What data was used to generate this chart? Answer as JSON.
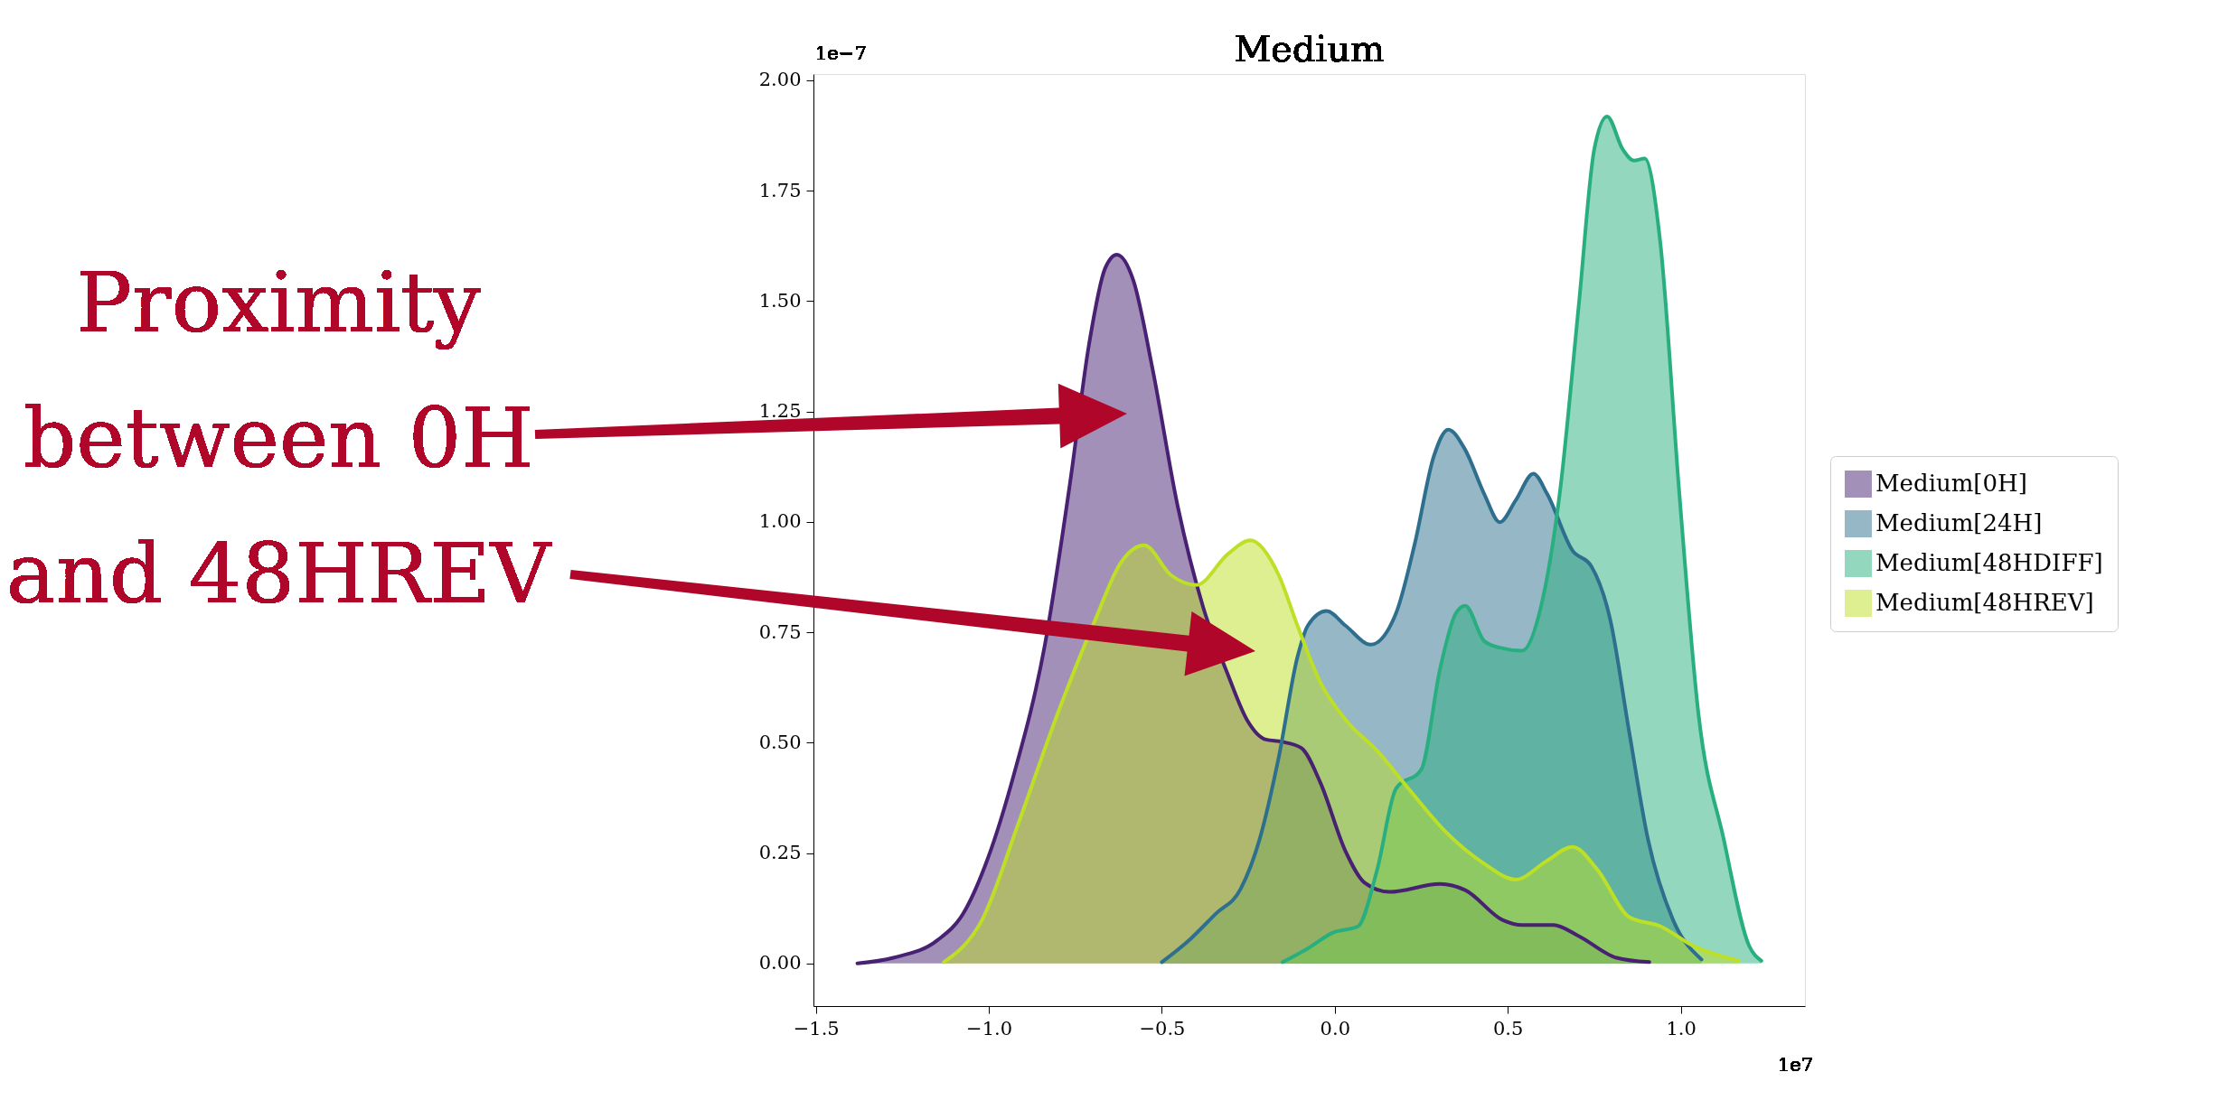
{
  "chart_data": {
    "type": "area",
    "title": "Medium",
    "legend": "right",
    "grid": false,
    "xlim": [
      -1.507,
      1.359
    ],
    "ylim": [
      -0.0965,
      2.014
    ],
    "xticks": [
      {
        "value": -1.5,
        "label": "−1.5"
      },
      {
        "value": -1.0,
        "label": "−1.0"
      },
      {
        "value": -0.5,
        "label": "−0.5"
      },
      {
        "value": 0,
        "label": "0.0"
      },
      {
        "value": 0.5,
        "label": "0.5"
      },
      {
        "value": 1.0,
        "label": "1.0"
      }
    ],
    "yticks": [
      {
        "value": 0,
        "label": "0.00"
      },
      {
        "value": 0.25,
        "label": "0.25"
      },
      {
        "value": 0.5,
        "label": "0.50"
      },
      {
        "value": 0.75,
        "label": "0.75"
      },
      {
        "value": 1.0,
        "label": "1.00"
      },
      {
        "value": 1.25,
        "label": "1.25"
      },
      {
        "value": 1.5,
        "label": "1.50"
      },
      {
        "value": 1.75,
        "label": "1.75"
      },
      {
        "value": 2.0,
        "label": "2.00"
      }
    ],
    "annotations": [
      "1e−7",
      "1e7",
      "Proximity\nbetween 0H\nand 48HREV"
    ],
    "series": [
      {
        "name": "Medium[0H]",
        "color": "#482173",
        "x": [
          -1.38,
          -1.276,
          -1.148,
          -1.075,
          -1.002,
          -0.929,
          -0.838,
          -0.765,
          -0.71,
          -0.664,
          -0.63,
          -0.582,
          -0.527,
          -0.454,
          -0.381,
          -0.308,
          -0.254,
          -0.199,
          -0.153,
          -0.097,
          -0.042,
          0.031,
          0.086,
          0.158,
          0.304,
          0.377,
          0.486,
          0.541,
          0.632,
          0.705,
          0.814,
          0.909
        ],
        "values": [
          0,
          0.013,
          0.053,
          0.112,
          0.24,
          0.424,
          0.722,
          1.09,
          1.404,
          1.574,
          1.605,
          1.546,
          1.347,
          1.035,
          0.808,
          0.652,
          0.552,
          0.507,
          0.502,
          0.488,
          0.41,
          0.254,
          0.183,
          0.162,
          0.18,
          0.166,
          0.098,
          0.087,
          0.087,
          0.062,
          0.013,
          0.003
        ]
      },
      {
        "name": "Medium[24H]",
        "color": "#2e6f8e",
        "x": [
          -0.5,
          -0.418,
          -0.345,
          -0.272,
          -0.217,
          -0.162,
          -0.108,
          -0.078,
          -0.024,
          0.031,
          0.104,
          0.177,
          0.231,
          0.286,
          0.328,
          0.377,
          0.432,
          0.477,
          0.523,
          0.574,
          0.614,
          0.687,
          0.741,
          0.796,
          0.851,
          0.905,
          0.978,
          1.06
        ],
        "values": [
          0.003,
          0.055,
          0.112,
          0.169,
          0.282,
          0.467,
          0.694,
          0.765,
          0.798,
          0.765,
          0.722,
          0.793,
          0.95,
          1.148,
          1.209,
          1.163,
          1.063,
          0.999,
          1.049,
          1.109,
          1.063,
          0.935,
          0.9,
          0.779,
          0.524,
          0.282,
          0.098,
          0.009
        ]
      },
      {
        "name": "Medium[48HDIFF]",
        "color": "#29af7f",
        "x": [
          -0.151,
          -0.078,
          -0.005,
          0.067,
          0.122,
          0.177,
          0.25,
          0.304,
          0.35,
          0.377,
          0.432,
          0.477,
          0.541,
          0.596,
          0.65,
          0.705,
          0.75,
          0.787,
          0.832,
          0.865,
          0.896,
          0.941,
          0.996,
          1.051,
          1.124,
          1.197,
          1.233
        ],
        "values": [
          0.003,
          0.034,
          0.07,
          0.084,
          0.211,
          0.396,
          0.439,
          0.666,
          0.793,
          0.81,
          0.73,
          0.715,
          0.708,
          0.808,
          1.063,
          1.489,
          1.844,
          1.918,
          1.844,
          1.818,
          1.823,
          1.631,
          1.063,
          0.566,
          0.282,
          0.041,
          0.006
        ]
      },
      {
        "name": "Medium[48HREV]",
        "color": "#bddf26",
        "x": [
          -1.13,
          -1.02,
          -0.911,
          -0.801,
          -0.692,
          -0.619,
          -0.551,
          -0.473,
          -0.4,
          -0.308,
          -0.245,
          -0.162,
          -0.108,
          -0.042,
          0.031,
          0.122,
          0.213,
          0.322,
          0.432,
          0.523,
          0.614,
          0.687,
          0.76,
          0.851,
          0.942,
          1.033,
          1.169
        ],
        "values": [
          0.003,
          0.098,
          0.325,
          0.566,
          0.779,
          0.907,
          0.947,
          0.879,
          0.857,
          0.928,
          0.958,
          0.879,
          0.765,
          0.637,
          0.552,
          0.482,
          0.396,
          0.297,
          0.226,
          0.19,
          0.233,
          0.264,
          0.211,
          0.105,
          0.084,
          0.041,
          0.006
        ]
      }
    ]
  }
}
